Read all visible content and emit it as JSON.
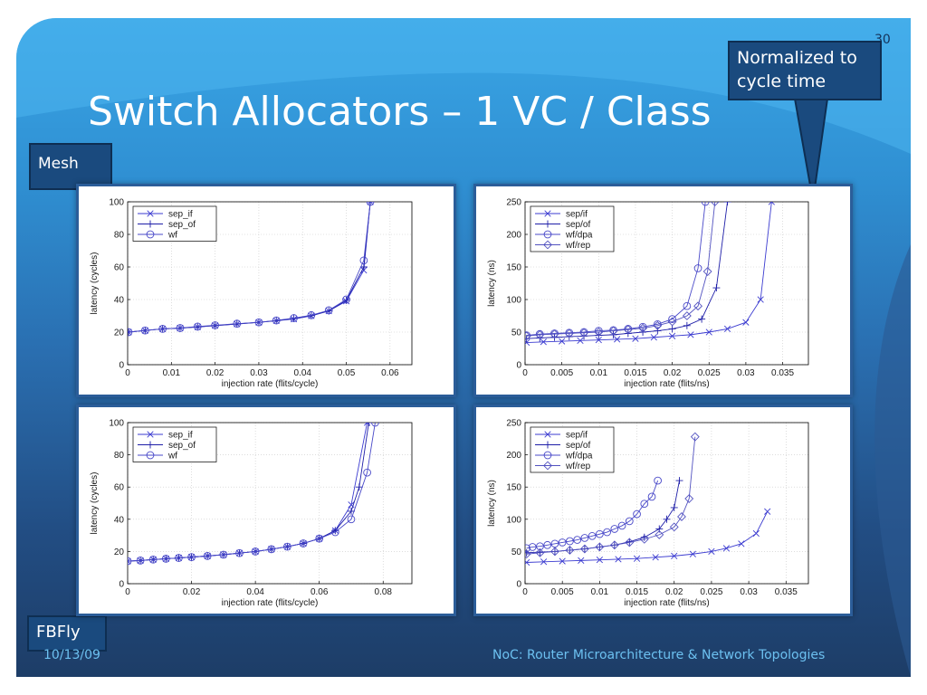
{
  "slide": {
    "title": "Switch Allocators – 1 VC / Class",
    "number": "30",
    "callouts": {
      "normalized": "Normalized to cycle time",
      "mesh": "Mesh",
      "fbfly": "FBFly"
    },
    "footer": {
      "date": "10/13/09",
      "text": "NoC: Router Microarchitecture & Network Topologies"
    }
  },
  "chart_data": [
    {
      "type": "line",
      "xlabel": "injection rate (flits/cycle)",
      "ylabel": "latency (cycles)",
      "xlim": [
        0,
        0.065
      ],
      "ylim": [
        0,
        100
      ],
      "xticks": [
        0,
        0.01,
        0.02,
        0.03,
        0.04,
        0.05,
        0.06
      ],
      "xticklabels": [
        "0",
        "0.01",
        "0.02",
        "0.03",
        "0.04",
        "0.05",
        "0.06"
      ],
      "yticks": [
        0,
        20,
        40,
        60,
        80,
        100
      ],
      "yticklabels": [
        "0",
        "20",
        "40",
        "60",
        "80",
        "100"
      ],
      "grid": true,
      "legend": "top-left",
      "series": [
        {
          "name": "sep_if",
          "marker": "x",
          "x": [
            0.0002,
            0.004,
            0.008,
            0.012,
            0.016,
            0.02,
            0.025,
            0.03,
            0.034,
            0.038,
            0.042,
            0.046,
            0.05,
            0.054,
            0.0555
          ],
          "y": [
            20,
            21,
            22,
            22.5,
            23.2,
            24,
            25,
            26,
            27,
            28,
            30,
            33,
            39,
            58,
            100
          ]
        },
        {
          "name": "sep_of",
          "marker": "+",
          "x": [
            0.0002,
            0.004,
            0.008,
            0.012,
            0.016,
            0.02,
            0.025,
            0.03,
            0.034,
            0.038,
            0.042,
            0.046,
            0.05,
            0.054,
            0.0555
          ],
          "y": [
            20,
            21,
            22,
            22.4,
            23.2,
            24,
            25,
            26,
            27,
            28.4,
            30.2,
            33,
            39.5,
            60,
            100
          ]
        },
        {
          "name": "wf",
          "marker": "o",
          "x": [
            0.0002,
            0.004,
            0.008,
            0.012,
            0.016,
            0.02,
            0.025,
            0.03,
            0.034,
            0.038,
            0.042,
            0.046,
            0.05,
            0.054,
            0.0555
          ],
          "y": [
            20,
            21,
            22,
            22.5,
            23.4,
            24.2,
            25.2,
            26,
            27.2,
            28.6,
            30.4,
            33.4,
            40,
            64,
            100
          ]
        }
      ]
    },
    {
      "type": "line",
      "xlabel": "injection rate (flits/ns)",
      "ylabel": "latency (ns)",
      "xlim": [
        0,
        0.0385
      ],
      "ylim": [
        0,
        250
      ],
      "xticks": [
        0,
        0.005,
        0.01,
        0.015,
        0.02,
        0.025,
        0.03,
        0.035
      ],
      "xticklabels": [
        "0",
        "0.005",
        "0.01",
        "0.015",
        "0.02",
        "0.025",
        "0.03",
        "0.035"
      ],
      "yticks": [
        0,
        50,
        100,
        150,
        200,
        250
      ],
      "yticklabels": [
        "0",
        "50",
        "100",
        "150",
        "200",
        "250"
      ],
      "grid": true,
      "legend": "top-left",
      "series": [
        {
          "name": "sep/if",
          "marker": "x",
          "x": [
            0.0002,
            0.0025,
            0.005,
            0.0075,
            0.01,
            0.0125,
            0.015,
            0.0175,
            0.02,
            0.0225,
            0.025,
            0.0275,
            0.03,
            0.032,
            0.0335
          ],
          "y": [
            34,
            35,
            36,
            37,
            38,
            39,
            40,
            42,
            44,
            46,
            50,
            55,
            65,
            100,
            250
          ]
        },
        {
          "name": "sep/of",
          "marker": "+",
          "x": [
            0.0002,
            0.002,
            0.004,
            0.006,
            0.008,
            0.01,
            0.012,
            0.014,
            0.016,
            0.018,
            0.02,
            0.022,
            0.024,
            0.026,
            0.0275
          ],
          "y": [
            40,
            41,
            42,
            43,
            44,
            45,
            46,
            48,
            50,
            52,
            55,
            60,
            70,
            118,
            250
          ]
        },
        {
          "name": "wf/dpa",
          "marker": "o",
          "x": [
            0.0002,
            0.002,
            0.004,
            0.006,
            0.008,
            0.01,
            0.012,
            0.014,
            0.016,
            0.018,
            0.02,
            0.022,
            0.0235,
            0.0245
          ],
          "y": [
            45,
            47,
            48,
            49,
            50,
            52,
            53,
            55,
            58,
            62,
            70,
            90,
            148,
            250
          ]
        },
        {
          "name": "wf/rep",
          "marker": "diamond",
          "x": [
            0.0002,
            0.002,
            0.004,
            0.006,
            0.008,
            0.01,
            0.012,
            0.014,
            0.016,
            0.018,
            0.02,
            0.022,
            0.0235,
            0.0248,
            0.0258
          ],
          "y": [
            44,
            46,
            47,
            48,
            49,
            50,
            52,
            54,
            56,
            60,
            66,
            75,
            90,
            143,
            250
          ]
        }
      ]
    },
    {
      "type": "line",
      "xlabel": "injection rate (flits/cycle)",
      "ylabel": "latency (cycles)",
      "xlim": [
        0,
        0.089
      ],
      "ylim": [
        0,
        100
      ],
      "xticks": [
        0,
        0.02,
        0.04,
        0.06,
        0.08
      ],
      "xticklabels": [
        "0",
        "0.02",
        "0.04",
        "0.06",
        "0.08"
      ],
      "yticks": [
        0,
        20,
        40,
        60,
        80,
        100
      ],
      "yticklabels": [
        "0",
        "20",
        "40",
        "60",
        "80",
        "100"
      ],
      "grid": true,
      "legend": "top-left",
      "series": [
        {
          "name": "sep_if",
          "marker": "x",
          "x": [
            0,
            0.004,
            0.008,
            0.012,
            0.016,
            0.02,
            0.025,
            0.03,
            0.035,
            0.04,
            0.045,
            0.05,
            0.055,
            0.06,
            0.065,
            0.07,
            0.075
          ],
          "y": [
            14,
            14.4,
            15,
            15.5,
            16,
            16.5,
            17.2,
            18,
            19,
            20,
            21.4,
            23,
            25,
            28,
            33,
            49,
            100
          ]
        },
        {
          "name": "sep_of",
          "marker": "+",
          "x": [
            0,
            0.004,
            0.008,
            0.012,
            0.016,
            0.02,
            0.025,
            0.03,
            0.035,
            0.04,
            0.045,
            0.05,
            0.055,
            0.06,
            0.065,
            0.07,
            0.0725,
            0.0755
          ],
          "y": [
            14,
            14.4,
            15,
            15.5,
            16,
            16.5,
            17.2,
            18,
            19,
            20,
            21.4,
            23,
            25,
            28,
            33,
            45,
            60,
            100
          ]
        },
        {
          "name": "wf",
          "marker": "o",
          "x": [
            0,
            0.004,
            0.008,
            0.012,
            0.016,
            0.02,
            0.025,
            0.03,
            0.035,
            0.04,
            0.045,
            0.05,
            0.055,
            0.06,
            0.065,
            0.07,
            0.075,
            0.0775
          ],
          "y": [
            14,
            14.4,
            15,
            15.5,
            16,
            16.5,
            17.2,
            18,
            19,
            20,
            21.4,
            23,
            25,
            28,
            32,
            40,
            69,
            100
          ]
        }
      ]
    },
    {
      "type": "line",
      "xlabel": "injection rate (flits/ns)",
      "ylabel": "latency (ns)",
      "xlim": [
        0,
        0.038
      ],
      "ylim": [
        0,
        250
      ],
      "xticks": [
        0,
        0.005,
        0.01,
        0.015,
        0.02,
        0.025,
        0.03,
        0.035
      ],
      "xticklabels": [
        "0",
        "0.005",
        "0.01",
        "0.015",
        "0.02",
        "0.025",
        "0.03",
        "0.035"
      ],
      "yticks": [
        0,
        50,
        100,
        150,
        200,
        250
      ],
      "yticklabels": [
        "0",
        "50",
        "100",
        "150",
        "200",
        "250"
      ],
      "grid": true,
      "legend": "top-left",
      "series": [
        {
          "name": "sep/if",
          "marker": "x",
          "x": [
            0.0002,
            0.0025,
            0.005,
            0.0075,
            0.01,
            0.0125,
            0.015,
            0.0175,
            0.02,
            0.0225,
            0.025,
            0.027,
            0.029,
            0.031,
            0.0325
          ],
          "y": [
            33,
            34,
            35,
            36,
            37,
            38,
            39,
            41,
            43,
            46,
            50,
            55,
            62,
            78,
            112
          ]
        },
        {
          "name": "sep/of",
          "marker": "+",
          "x": [
            0.0002,
            0.002,
            0.004,
            0.006,
            0.008,
            0.01,
            0.012,
            0.014,
            0.016,
            0.018,
            0.019,
            0.02,
            0.0207
          ],
          "y": [
            48,
            49,
            50,
            52,
            54,
            57,
            60,
            65,
            72,
            85,
            100,
            118,
            160
          ]
        },
        {
          "name": "wf/dpa",
          "marker": "o",
          "x": [
            0.0002,
            0.001,
            0.002,
            0.003,
            0.004,
            0.005,
            0.006,
            0.007,
            0.008,
            0.009,
            0.01,
            0.011,
            0.012,
            0.013,
            0.014,
            0.015,
            0.016,
            0.017,
            0.0178
          ],
          "y": [
            55,
            57,
            58,
            60,
            62,
            64,
            66,
            68,
            71,
            74,
            77,
            80,
            85,
            90,
            97,
            108,
            124,
            135,
            160
          ]
        },
        {
          "name": "wf/rep",
          "marker": "diamond",
          "x": [
            0.0002,
            0.002,
            0.004,
            0.006,
            0.008,
            0.01,
            0.012,
            0.014,
            0.016,
            0.018,
            0.02,
            0.021,
            0.022,
            0.0228
          ],
          "y": [
            46,
            48,
            50,
            52,
            54,
            57,
            60,
            64,
            69,
            76,
            88,
            104,
            132,
            228
          ]
        }
      ]
    }
  ]
}
